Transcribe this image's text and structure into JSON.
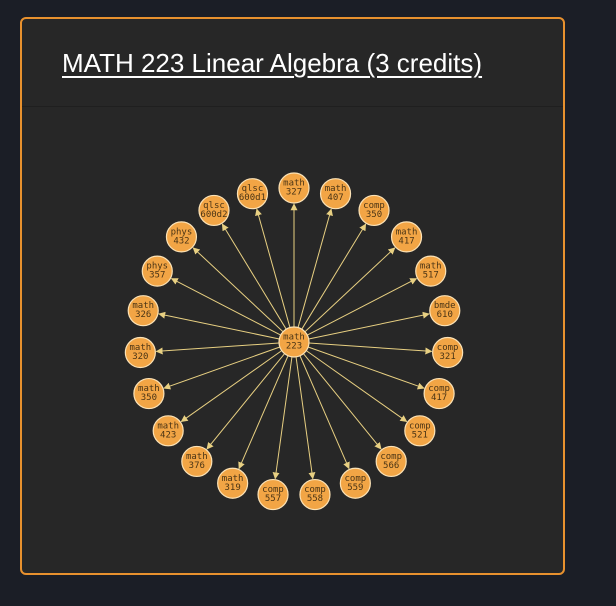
{
  "course": {
    "title": "MATH 223 Linear Algebra (3 credits)"
  },
  "graph": {
    "colors": {
      "node_fill": "#f2a545",
      "node_stroke": "#fbe2b6",
      "edge": "#e8d082",
      "label": "#4a3415"
    },
    "center": {
      "line1": "math",
      "line2": "223"
    },
    "nodes": [
      {
        "line1": "math",
        "line2": "327"
      },
      {
        "line1": "math",
        "line2": "407"
      },
      {
        "line1": "comp",
        "line2": "350"
      },
      {
        "line1": "math",
        "line2": "417"
      },
      {
        "line1": "math",
        "line2": "517"
      },
      {
        "line1": "bmde",
        "line2": "610"
      },
      {
        "line1": "comp",
        "line2": "321"
      },
      {
        "line1": "comp",
        "line2": "417"
      },
      {
        "line1": "comp",
        "line2": "521"
      },
      {
        "line1": "comp",
        "line2": "566"
      },
      {
        "line1": "comp",
        "line2": "559"
      },
      {
        "line1": "comp",
        "line2": "558"
      },
      {
        "line1": "comp",
        "line2": "557"
      },
      {
        "line1": "math",
        "line2": "319"
      },
      {
        "line1": "math",
        "line2": "376"
      },
      {
        "line1": "math",
        "line2": "423"
      },
      {
        "line1": "math",
        "line2": "350"
      },
      {
        "line1": "math",
        "line2": "320"
      },
      {
        "line1": "math",
        "line2": "326"
      },
      {
        "line1": "phys",
        "line2": "357"
      },
      {
        "line1": "phys",
        "line2": "432"
      },
      {
        "line1": "qlsc",
        "line2": "600d2"
      },
      {
        "line1": "qlsc",
        "line2": "600d1"
      }
    ]
  }
}
